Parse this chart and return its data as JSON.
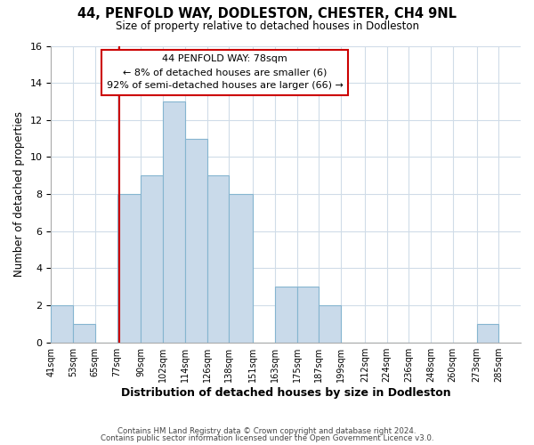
{
  "title": "44, PENFOLD WAY, DODLESTON, CHESTER, CH4 9NL",
  "subtitle": "Size of property relative to detached houses in Dodleston",
  "xlabel": "Distribution of detached houses by size in Dodleston",
  "ylabel": "Number of detached properties",
  "footer_lines": [
    "Contains HM Land Registry data © Crown copyright and database right 2024.",
    "Contains public sector information licensed under the Open Government Licence v3.0."
  ],
  "bin_edges": [
    41,
    53,
    65,
    77,
    90,
    102,
    114,
    126,
    138,
    151,
    163,
    175,
    187,
    199,
    212,
    224,
    236,
    248,
    260,
    273,
    285
  ],
  "bin_labels": [
    "41sqm",
    "53sqm",
    "65sqm",
    "77sqm",
    "90sqm",
    "102sqm",
    "114sqm",
    "126sqm",
    "138sqm",
    "151sqm",
    "163sqm",
    "175sqm",
    "187sqm",
    "199sqm",
    "212sqm",
    "224sqm",
    "236sqm",
    "248sqm",
    "260sqm",
    "273sqm",
    "285sqm"
  ],
  "counts": [
    2,
    1,
    0,
    8,
    9,
    13,
    11,
    9,
    8,
    0,
    3,
    3,
    2,
    0,
    0,
    0,
    0,
    0,
    0,
    1
  ],
  "bar_color": "#c9daea",
  "bar_edge_color": "#85b5d0",
  "property_line_x": 78,
  "property_line_color": "#cc0000",
  "annotation_line1": "44 PENFOLD WAY: 78sqm",
  "annotation_line2": "← 8% of detached houses are smaller (6)",
  "annotation_line3": "92% of semi-detached houses are larger (66) →",
  "annotation_box_color": "#ffffff",
  "annotation_box_edgecolor": "#cc0000",
  "ylim": [
    0,
    16
  ],
  "yticks": [
    0,
    2,
    4,
    6,
    8,
    10,
    12,
    14,
    16
  ],
  "bg_color": "#ffffff",
  "grid_color": "#d0dce8"
}
